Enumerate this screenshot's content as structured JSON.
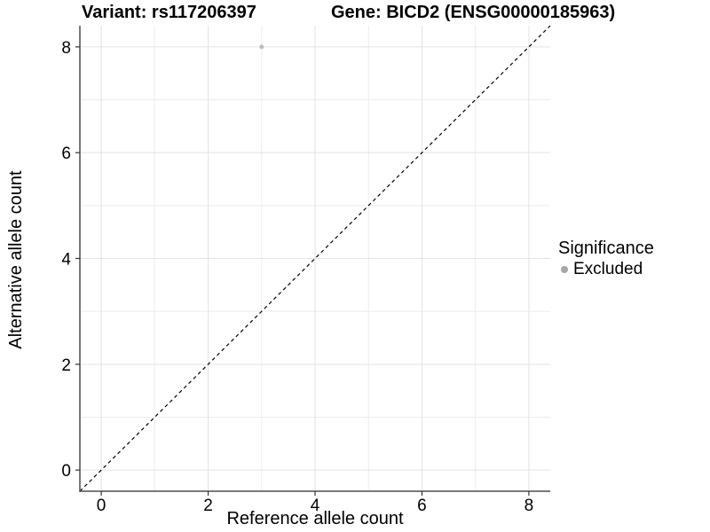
{
  "title": {
    "variant": "Variant: rs117206397",
    "gene": "Gene: BICD2 (ENSG00000185963)"
  },
  "chart_data": {
    "type": "scatter",
    "title_left": "Variant: rs117206397",
    "title_right": "Gene: BICD2 (ENSG00000185963)",
    "xlabel": "Reference allele count",
    "ylabel": "Alternative allele count",
    "xlim": [
      -0.4,
      8.4
    ],
    "ylim": [
      -0.4,
      8.4
    ],
    "x_ticks": [
      0,
      2,
      4,
      6,
      8
    ],
    "y_ticks": [
      0,
      2,
      4,
      6,
      8
    ],
    "x_minor_ticks": [
      1,
      3,
      5,
      7
    ],
    "y_minor_ticks": [
      1,
      3,
      5,
      7
    ],
    "grid": "major+minor",
    "series": [
      {
        "name": "Excluded",
        "marker": "circle",
        "color": "#bebebe",
        "points": [
          {
            "x": 3,
            "y": 8
          }
        ]
      }
    ],
    "reference_line": {
      "kind": "identity y=x",
      "style": "dashed",
      "color": "#000000",
      "from": [
        -0.4,
        -0.4
      ],
      "to": [
        8.4,
        8.4
      ]
    },
    "legend": {
      "title": "Significance",
      "position": "right",
      "entries": [
        {
          "label": "Excluded",
          "marker": "circle",
          "color": "#a6a6a6"
        }
      ]
    }
  },
  "colors": {
    "background": "#ffffff",
    "point_gray": "#bebebe",
    "legend_dot_gray": "#a6a6a6",
    "grid_major": "#e3e3e3",
    "grid_minor": "#ececec",
    "axis_line": "#4d4d4d",
    "text": "#000000"
  }
}
